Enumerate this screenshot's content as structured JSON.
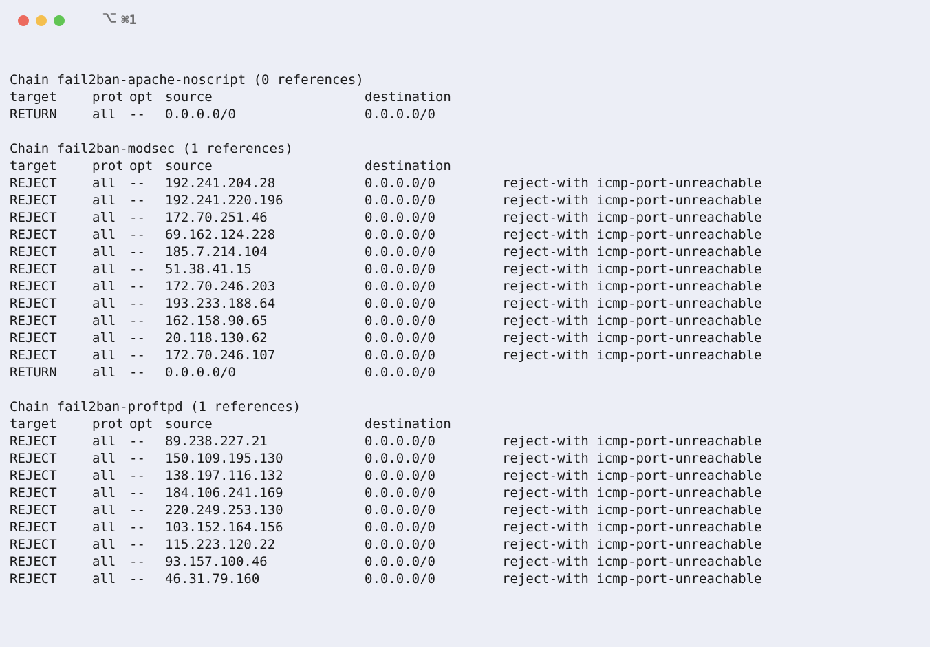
{
  "colors": {
    "background": "#eceef6",
    "text": "#1b1b1b",
    "tab_text": "#6f6f70",
    "close": "#ec6a5e",
    "min": "#f4bf4f",
    "max": "#61c554"
  },
  "tab_label": "⌘1",
  "headers": {
    "target": "target",
    "prot": "prot",
    "opt": "opt",
    "source": "source",
    "destination": "destination"
  },
  "chains": [
    {
      "title": "Chain fail2ban-apache-noscript (0 references)",
      "rows": [
        {
          "target": "RETURN",
          "prot": "all",
          "opt": "--",
          "source": "0.0.0.0/0",
          "destination": "0.0.0.0/0",
          "extra": ""
        }
      ]
    },
    {
      "title": "Chain fail2ban-modsec (1 references)",
      "rows": [
        {
          "target": "REJECT",
          "prot": "all",
          "opt": "--",
          "source": "192.241.204.28",
          "destination": "0.0.0.0/0",
          "extra": "reject-with icmp-port-unreachable"
        },
        {
          "target": "REJECT",
          "prot": "all",
          "opt": "--",
          "source": "192.241.220.196",
          "destination": "0.0.0.0/0",
          "extra": "reject-with icmp-port-unreachable"
        },
        {
          "target": "REJECT",
          "prot": "all",
          "opt": "--",
          "source": "172.70.251.46",
          "destination": "0.0.0.0/0",
          "extra": "reject-with icmp-port-unreachable"
        },
        {
          "target": "REJECT",
          "prot": "all",
          "opt": "--",
          "source": "69.162.124.228",
          "destination": "0.0.0.0/0",
          "extra": "reject-with icmp-port-unreachable"
        },
        {
          "target": "REJECT",
          "prot": "all",
          "opt": "--",
          "source": "185.7.214.104",
          "destination": "0.0.0.0/0",
          "extra": "reject-with icmp-port-unreachable"
        },
        {
          "target": "REJECT",
          "prot": "all",
          "opt": "--",
          "source": "51.38.41.15",
          "destination": "0.0.0.0/0",
          "extra": "reject-with icmp-port-unreachable"
        },
        {
          "target": "REJECT",
          "prot": "all",
          "opt": "--",
          "source": "172.70.246.203",
          "destination": "0.0.0.0/0",
          "extra": "reject-with icmp-port-unreachable"
        },
        {
          "target": "REJECT",
          "prot": "all",
          "opt": "--",
          "source": "193.233.188.64",
          "destination": "0.0.0.0/0",
          "extra": "reject-with icmp-port-unreachable"
        },
        {
          "target": "REJECT",
          "prot": "all",
          "opt": "--",
          "source": "162.158.90.65",
          "destination": "0.0.0.0/0",
          "extra": "reject-with icmp-port-unreachable"
        },
        {
          "target": "REJECT",
          "prot": "all",
          "opt": "--",
          "source": "20.118.130.62",
          "destination": "0.0.0.0/0",
          "extra": "reject-with icmp-port-unreachable"
        },
        {
          "target": "REJECT",
          "prot": "all",
          "opt": "--",
          "source": "172.70.246.107",
          "destination": "0.0.0.0/0",
          "extra": "reject-with icmp-port-unreachable"
        },
        {
          "target": "RETURN",
          "prot": "all",
          "opt": "--",
          "source": "0.0.0.0/0",
          "destination": "0.0.0.0/0",
          "extra": ""
        }
      ]
    },
    {
      "title": "Chain fail2ban-proftpd (1 references)",
      "rows": [
        {
          "target": "REJECT",
          "prot": "all",
          "opt": "--",
          "source": "89.238.227.21",
          "destination": "0.0.0.0/0",
          "extra": "reject-with icmp-port-unreachable"
        },
        {
          "target": "REJECT",
          "prot": "all",
          "opt": "--",
          "source": "150.109.195.130",
          "destination": "0.0.0.0/0",
          "extra": "reject-with icmp-port-unreachable"
        },
        {
          "target": "REJECT",
          "prot": "all",
          "opt": "--",
          "source": "138.197.116.132",
          "destination": "0.0.0.0/0",
          "extra": "reject-with icmp-port-unreachable"
        },
        {
          "target": "REJECT",
          "prot": "all",
          "opt": "--",
          "source": "184.106.241.169",
          "destination": "0.0.0.0/0",
          "extra": "reject-with icmp-port-unreachable"
        },
        {
          "target": "REJECT",
          "prot": "all",
          "opt": "--",
          "source": "220.249.253.130",
          "destination": "0.0.0.0/0",
          "extra": "reject-with icmp-port-unreachable"
        },
        {
          "target": "REJECT",
          "prot": "all",
          "opt": "--",
          "source": "103.152.164.156",
          "destination": "0.0.0.0/0",
          "extra": "reject-with icmp-port-unreachable"
        },
        {
          "target": "REJECT",
          "prot": "all",
          "opt": "--",
          "source": "115.223.120.22",
          "destination": "0.0.0.0/0",
          "extra": "reject-with icmp-port-unreachable"
        },
        {
          "target": "REJECT",
          "prot": "all",
          "opt": "--",
          "source": "93.157.100.46",
          "destination": "0.0.0.0/0",
          "extra": "reject-with icmp-port-unreachable"
        },
        {
          "target": "REJECT",
          "prot": "all",
          "opt": "--",
          "source": "46.31.79.160",
          "destination": "0.0.0.0/0",
          "extra": "reject-with icmp-port-unreachable"
        }
      ]
    }
  ]
}
